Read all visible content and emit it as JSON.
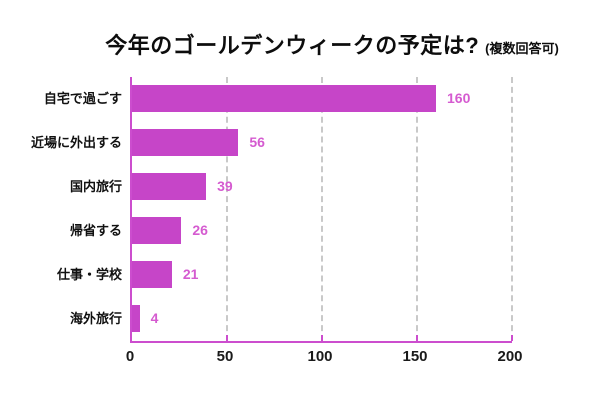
{
  "title": {
    "text": "今年のゴールデンウィークの予定は?",
    "note": "(複数回答可)"
  },
  "chart_data": {
    "type": "bar",
    "orientation": "horizontal",
    "title": "今年のゴールデンウィークの予定は?",
    "subtitle": "(複数回答可)",
    "categories": [
      "自宅で過ごす",
      "近場に外出する",
      "国内旅行",
      "帰省する",
      "仕事・学校",
      "海外旅行"
    ],
    "values": [
      160,
      56,
      39,
      26,
      21,
      4
    ],
    "xlabel": "",
    "ylabel": "",
    "xlim": [
      0,
      200
    ],
    "xticks": [
      0,
      50,
      100,
      150,
      200
    ],
    "grid": "vertical-dashed",
    "legend": "none",
    "bar_color": "#c645c8",
    "axis_color": "#cc4dce",
    "value_label_color": "#d55bd0",
    "gridline_color": "#c9c9c9",
    "tick_label_color": "#1a1a1a"
  }
}
